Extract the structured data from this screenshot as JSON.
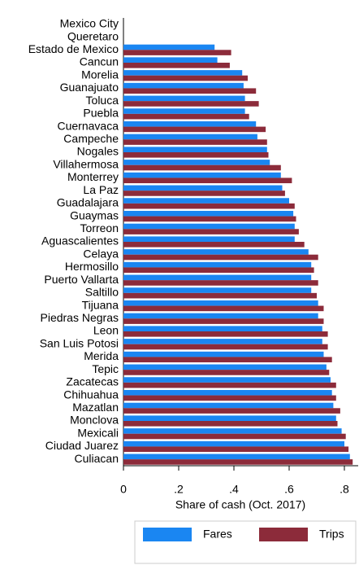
{
  "chart_data": {
    "type": "barh_grouped",
    "xlabel": "Share of cash (Oct. 2017)",
    "categories": [
      "Mexico City",
      "Queretaro",
      "Estado de Mexico",
      "Cancun",
      "Morelia",
      "Guanajuato",
      "Toluca",
      "Puebla",
      "Cuernavaca",
      "Campeche",
      "Nogales",
      "Villahermosa",
      "Monterrey",
      "La Paz",
      "Guadalajara",
      "Guaymas",
      "Torreon",
      "Aguascalientes",
      "Celaya",
      "Hermosillo",
      "Puerto Vallarta",
      "Saltillo",
      "Tijuana",
      "Piedras Negras",
      "Leon",
      "San Luis Potosi",
      "Merida",
      "Tepic",
      "Zacatecas",
      "Chihuahua",
      "Mazatlan",
      "Monclova",
      "Mexicali",
      "Ciudad Juarez",
      "Culiacan"
    ],
    "series": [
      {
        "name": "Fares",
        "color": "#1a86f2",
        "values": [
          null,
          null,
          0.33,
          0.34,
          0.43,
          0.435,
          0.44,
          0.44,
          0.48,
          0.485,
          0.52,
          0.53,
          0.57,
          0.575,
          0.6,
          0.615,
          0.62,
          0.62,
          0.67,
          0.68,
          0.68,
          0.68,
          0.705,
          0.705,
          0.72,
          0.72,
          0.725,
          0.735,
          0.75,
          0.755,
          0.76,
          0.77,
          0.79,
          0.8,
          0.82
        ]
      },
      {
        "name": "Trips",
        "color": "#8c2b3a",
        "values": [
          null,
          null,
          0.39,
          0.385,
          0.45,
          0.48,
          0.49,
          0.455,
          0.515,
          0.52,
          0.525,
          0.57,
          0.61,
          0.585,
          0.62,
          0.625,
          0.635,
          0.655,
          0.705,
          0.69,
          0.705,
          0.7,
          0.725,
          0.725,
          0.74,
          0.74,
          0.755,
          0.745,
          0.77,
          0.77,
          0.785,
          0.775,
          0.805,
          0.815,
          0.83
        ]
      }
    ],
    "xlim": [
      0,
      0.85
    ],
    "xticks": [
      0,
      {
        "value": 0.2,
        "label": ".2"
      },
      {
        "value": 0.4,
        "label": ".4"
      },
      {
        "value": 0.6,
        "label": ".6"
      },
      {
        "value": 0.8,
        "label": ".8"
      }
    ]
  }
}
